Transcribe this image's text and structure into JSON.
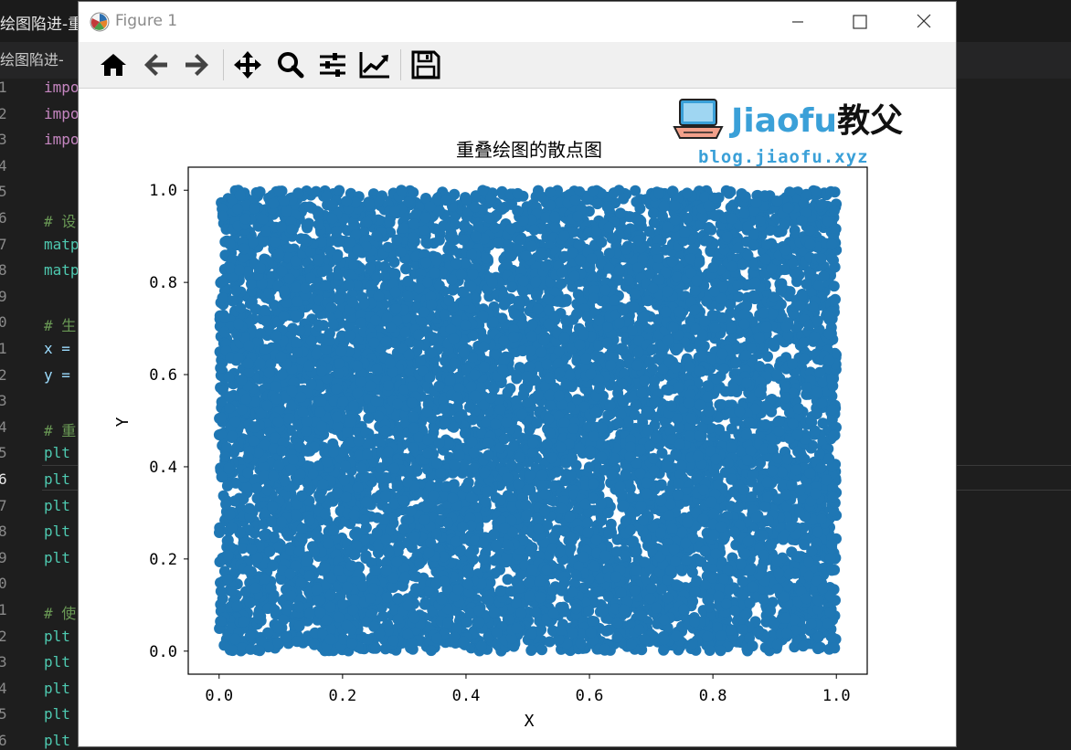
{
  "editor": {
    "title": "绘图陷进-重",
    "tab": "绘图陷进-",
    "line_numbers": [
      "1",
      "2",
      "3",
      "4",
      "5",
      "6",
      "7",
      "8",
      "9",
      "0",
      "1",
      "2",
      "3",
      "4",
      "5",
      "6",
      "7",
      "8",
      "9",
      "0",
      "1",
      "2",
      "3",
      "4",
      "5",
      "6"
    ],
    "active_line_index": 15,
    "code_lines": [
      {
        "text": "impo",
        "kind": "kw"
      },
      {
        "text": "impo",
        "kind": "kw"
      },
      {
        "text": "impo",
        "kind": "kw"
      },
      {
        "text": "",
        "kind": "kw"
      },
      {
        "text": "",
        "kind": "kw"
      },
      {
        "text": "# 设",
        "kind": "cm"
      },
      {
        "text": "matp",
        "kind": "fn"
      },
      {
        "text": "matp",
        "kind": "fn"
      },
      {
        "text": "",
        "kind": "kw"
      },
      {
        "text": "# 生",
        "kind": "cm"
      },
      {
        "text": "x =",
        "kind": "var"
      },
      {
        "text": "y =",
        "kind": "var"
      },
      {
        "text": "",
        "kind": "kw"
      },
      {
        "text": "# 重",
        "kind": "cm"
      },
      {
        "text": "plt",
        "kind": "fn"
      },
      {
        "text": "plt",
        "kind": "fn"
      },
      {
        "text": "plt",
        "kind": "fn"
      },
      {
        "text": "plt",
        "kind": "fn"
      },
      {
        "text": "plt",
        "kind": "fn"
      },
      {
        "text": "",
        "kind": "kw"
      },
      {
        "text": "# 使",
        "kind": "cm"
      },
      {
        "text": "plt",
        "kind": "fn"
      },
      {
        "text": "plt",
        "kind": "fn"
      },
      {
        "text": "plt",
        "kind": "fn"
      },
      {
        "text": "plt",
        "kind": "fn"
      },
      {
        "text": "plt",
        "kind": "fn"
      }
    ]
  },
  "window": {
    "title": "Figure 1"
  },
  "toolbar": {
    "buttons": [
      "home-icon",
      "back-icon",
      "forward-icon",
      "pan-icon",
      "zoom-icon",
      "subplots-icon",
      "axes-edit-icon",
      "save-icon"
    ]
  },
  "logo": {
    "name": "Jiaofu",
    "name_cn": "教父",
    "url": "blog.jiaofu.xyz"
  },
  "colors": {
    "marker": "#1f77b4",
    "logo_blue": "#3aa0d8"
  },
  "chart_data": {
    "type": "scatter",
    "title": "重叠绘图的散点图",
    "xlabel": "X",
    "ylabel": "Y",
    "xlim": [
      -0.05,
      1.05
    ],
    "ylim": [
      -0.05,
      1.05
    ],
    "xticks": [
      "0.0",
      "0.2",
      "0.4",
      "0.6",
      "0.8",
      "1.0"
    ],
    "yticks": [
      "0.0",
      "0.2",
      "0.4",
      "0.6",
      "0.8",
      "1.0"
    ],
    "series": [
      {
        "distribution": "uniform",
        "x_range": [
          0,
          1
        ],
        "y_range": [
          0,
          1
        ],
        "color": "#1f77b4",
        "overlapping": true
      }
    ],
    "grid": false
  }
}
